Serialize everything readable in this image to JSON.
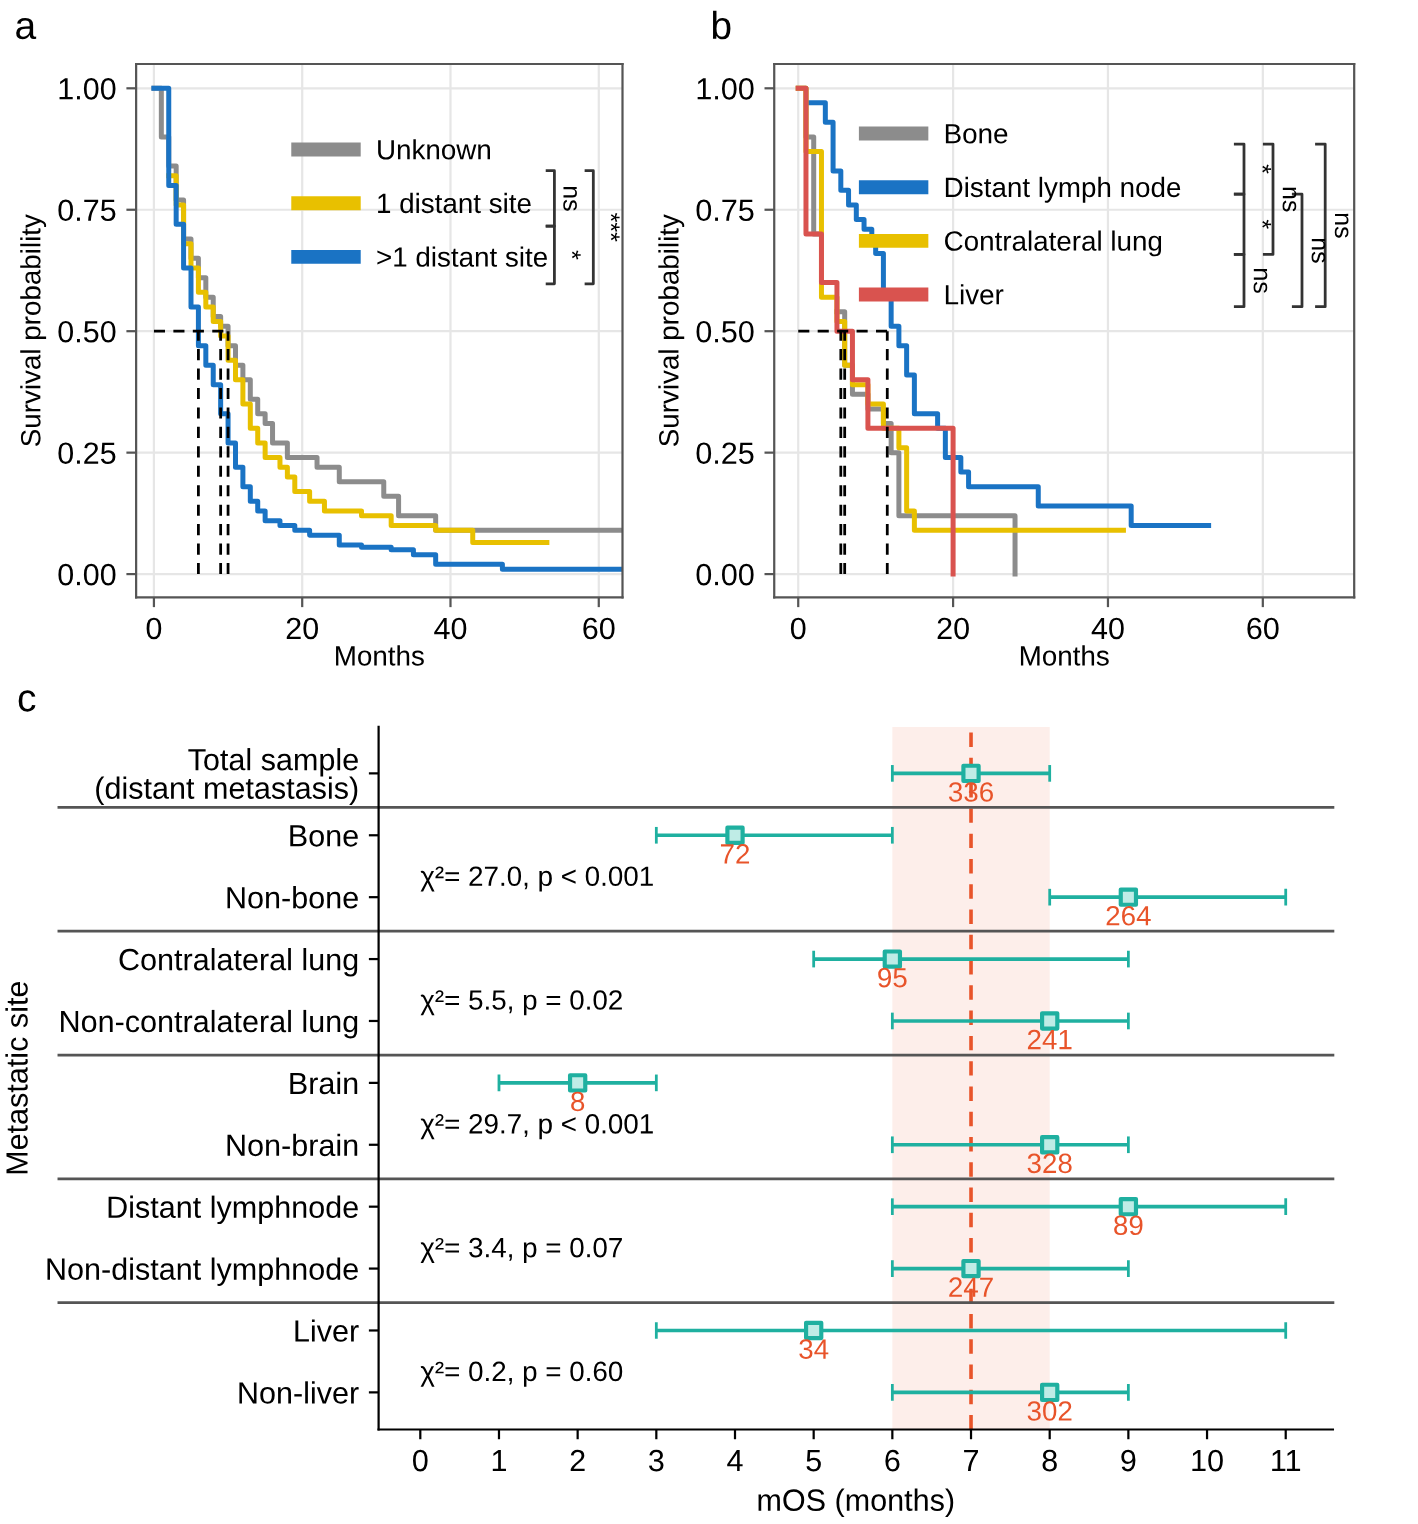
{
  "chart_data": [
    {
      "type": "step",
      "title": "a",
      "xlabel": "Months",
      "ylabel": "Survival probability",
      "xlim": [
        -2.4,
        63.2
      ],
      "ylim": [
        -0.048,
        1.05
      ],
      "xticks": [
        0,
        20,
        40,
        60
      ],
      "yticks": [
        {
          "value": 0,
          "label": "0.00"
        },
        {
          "value": 0.25,
          "label": "0.25"
        },
        {
          "value": 0.5,
          "label": "0.50"
        },
        {
          "value": 0.75,
          "label": "0.75"
        },
        {
          "value": 1,
          "label": "1.00"
        }
      ],
      "grid": true,
      "legend": "top right",
      "annotations": [
        "ns",
        "*",
        "***"
      ],
      "series": [
        {
          "name": "Unknown",
          "color": "#8c8c8c",
          "x": [
            0,
            1,
            2,
            3,
            4,
            5,
            6,
            7,
            8,
            9,
            10,
            11,
            12,
            13,
            14,
            15,
            16,
            18,
            22,
            25,
            31,
            33,
            38,
            63
          ],
          "values": [
            1.0,
            0.9,
            0.84,
            0.77,
            0.69,
            0.65,
            0.61,
            0.57,
            0.53,
            0.51,
            0.47,
            0.43,
            0.4,
            0.36,
            0.33,
            0.31,
            0.27,
            0.24,
            0.22,
            0.19,
            0.16,
            0.12,
            0.09,
            0.09
          ]
        },
        {
          "name": "1 distant site",
          "color": "#e8c000",
          "x": [
            2,
            3,
            4,
            5,
            6,
            7,
            8,
            9,
            10,
            11,
            12,
            13,
            14,
            15,
            17,
            18,
            19,
            21,
            23,
            28,
            32,
            38,
            43,
            53
          ],
          "values": [
            0.82,
            0.76,
            0.68,
            0.63,
            0.58,
            0.55,
            0.52,
            0.49,
            0.44,
            0.4,
            0.35,
            0.3,
            0.27,
            0.24,
            0.22,
            0.2,
            0.17,
            0.15,
            0.13,
            0.12,
            0.1,
            0.09,
            0.065,
            0.065
          ]
        },
        {
          "name": ">1 distant site",
          "color": "#1a73c4",
          "x": [
            0,
            2,
            3,
            4,
            5,
            6,
            7,
            8,
            9,
            10,
            11,
            12,
            13,
            14,
            15,
            17,
            19,
            21,
            25,
            28,
            32,
            35,
            38,
            47,
            63
          ],
          "values": [
            1.0,
            0.8,
            0.72,
            0.63,
            0.55,
            0.47,
            0.43,
            0.39,
            0.33,
            0.27,
            0.22,
            0.18,
            0.15,
            0.13,
            0.11,
            0.1,
            0.09,
            0.08,
            0.06,
            0.055,
            0.05,
            0.04,
            0.02,
            0.01,
            0.01
          ]
        },
        {
          "type": "line",
          "color": "#000000",
          "line_style": "dashed",
          "x": [
            0,
            10
          ],
          "values": [
            0.5,
            0.5
          ]
        },
        {
          "type": "line",
          "color": "#000000",
          "line_style": "dashed",
          "x": [
            6,
            6
          ],
          "values": [
            0,
            0.5
          ]
        },
        {
          "type": "line",
          "color": "#000000",
          "line_style": "dashed",
          "x": [
            9,
            9
          ],
          "values": [
            0,
            0.5
          ]
        },
        {
          "type": "line",
          "color": "#000000",
          "line_style": "dashed",
          "x": [
            10,
            10
          ],
          "values": [
            0,
            0.5
          ]
        }
      ]
    },
    {
      "type": "step",
      "title": "b",
      "xlabel": "Months",
      "ylabel": "Survival probability",
      "xlim": [
        -3.1,
        71.8
      ],
      "ylim": [
        -0.048,
        1.05
      ],
      "xticks": [
        0,
        20,
        40,
        60
      ],
      "yticks": [
        {
          "value": 0,
          "label": "0.00"
        },
        {
          "value": 0.25,
          "label": "0.25"
        },
        {
          "value": 0.5,
          "label": "0.50"
        },
        {
          "value": 0.75,
          "label": "0.75"
        },
        {
          "value": 1,
          "label": "1.00"
        }
      ],
      "grid": true,
      "legend": "top",
      "annotations": [
        "*",
        "*",
        "ns",
        "ns",
        "ns",
        "ns"
      ],
      "series": [
        {
          "name": "Bone",
          "color": "#8c8c8c",
          "x": [
            0,
            1,
            2,
            3,
            5,
            6,
            7,
            9,
            11,
            12,
            13,
            28
          ],
          "values": [
            1.0,
            0.9,
            0.7,
            null,
            0.54,
            0.43,
            0.37,
            0.34,
            0.31,
            0.25,
            0.12,
            0.0
          ]
        },
        {
          "name": "Distant lymph node",
          "color": "#1a73c4",
          "x": [
            1.5,
            3.5,
            4.5,
            5.5,
            6.5,
            7.5,
            8.5,
            9.5,
            10,
            11,
            12,
            13,
            14,
            15,
            18,
            19,
            21,
            22,
            31,
            43,
            53
          ],
          "values": [
            0.97,
            0.93,
            0.83,
            0.79,
            0.76,
            0.73,
            0.71,
            0.68,
            0.66,
            0.57,
            0.51,
            0.47,
            0.41,
            0.33,
            0.3,
            0.24,
            0.21,
            0.18,
            0.14,
            0.1,
            0.1
          ]
        },
        {
          "name": "Contralateral lung",
          "color": "#e8c000",
          "x": [
            0,
            1,
            3,
            5,
            6,
            7,
            9,
            11,
            13,
            14,
            15,
            42
          ],
          "values": [
            1.0,
            0.87,
            0.57,
            0.52,
            0.43,
            0.39,
            0.35,
            0.3,
            0.26,
            0.13,
            0.09,
            0.09
          ]
        },
        {
          "name": "Liver",
          "color": "#d9534f",
          "x": [
            0,
            1,
            3,
            5,
            7,
            9,
            20
          ],
          "values": [
            1.0,
            0.7,
            0.6,
            0.5,
            0.4,
            0.3,
            0.0
          ]
        },
        {
          "type": "line",
          "color": "#000000",
          "line_style": "dashed",
          "x": [
            0,
            11.5
          ],
          "values": [
            0.5,
            0.5
          ]
        },
        {
          "type": "line",
          "color": "#000000",
          "line_style": "dashed",
          "x": [
            5.5,
            5.5
          ],
          "values": [
            0,
            0.5
          ]
        },
        {
          "type": "line",
          "color": "#000000",
          "line_style": "dashed",
          "x": [
            6,
            6
          ],
          "values": [
            0,
            0.5
          ]
        },
        {
          "type": "line",
          "color": "#000000",
          "line_style": "dashed",
          "x": [
            11.5,
            11.5
          ],
          "values": [
            0,
            0.5
          ]
        }
      ]
    },
    {
      "type": "scatter",
      "orientation": "horizontal",
      "title": "c",
      "xlabel": "mOS (months)",
      "ylabel": "Metastatic site",
      "marker": "square",
      "color": "#1fb0a0",
      "categories": [
        "Total sample\n(distant metastasis)",
        "Bone",
        "Non-bone",
        "Contralateral lung",
        "Non-contralateral lung",
        "Brain",
        "Non-brain",
        "Distant lymphnode",
        "Non-distant lymphnode",
        "Liver",
        "Non-liver"
      ],
      "values": [
        7,
        4,
        9,
        6,
        8,
        2,
        8,
        9,
        7,
        5,
        8
      ],
      "errors": [
        [
          6,
          8
        ],
        [
          3,
          6
        ],
        [
          8,
          11
        ],
        [
          5,
          9
        ],
        [
          6,
          9
        ],
        [
          1,
          3
        ],
        [
          6,
          9
        ],
        [
          6,
          11
        ],
        [
          6,
          9
        ],
        [
          3,
          11
        ],
        [
          6,
          9
        ]
      ],
      "xlim": [
        -0.53,
        11.6
      ],
      "xticks": [
        0,
        1,
        2,
        3,
        4,
        5,
        6,
        7,
        8,
        9,
        10,
        11
      ],
      "ref_lines": [
        {
          "axis": "x",
          "value": 7,
          "color": "#e8542a",
          "line_style": "dashed"
        }
      ],
      "bands": [
        {
          "axis": "x",
          "from": 6,
          "to": 8,
          "color": "#fdeeea"
        }
      ],
      "annotations": [
        "χ²= 27.0, p < 0.001",
        "χ²= 5.5, p = 0.02",
        "χ²= 29.7, p < 0.001",
        "χ²= 3.4, p = 0.07",
        "χ²= 0.2, p = 0.60",
        {
          "text": "336",
          "x": 7,
          "y": "Total sample\n(distant metastasis)"
        },
        {
          "text": "72",
          "x": 4,
          "y": "Bone"
        },
        {
          "text": "264",
          "x": 9,
          "y": "Non-bone"
        },
        {
          "text": "95",
          "x": 6,
          "y": "Contralateral lung"
        },
        {
          "text": "241",
          "x": 8,
          "y": "Non-contralateral lung"
        },
        {
          "text": "8",
          "x": 2,
          "y": "Brain"
        },
        {
          "text": "328",
          "x": 8,
          "y": "Non-brain"
        },
        {
          "text": "89",
          "x": 9,
          "y": "Distant lymphnode"
        },
        {
          "text": "247",
          "x": 7,
          "y": "Non-distant lymphnode"
        },
        {
          "text": "34",
          "x": 5,
          "y": "Liver"
        },
        {
          "text": "302",
          "x": 8,
          "y": "Non-liver"
        }
      ]
    }
  ]
}
